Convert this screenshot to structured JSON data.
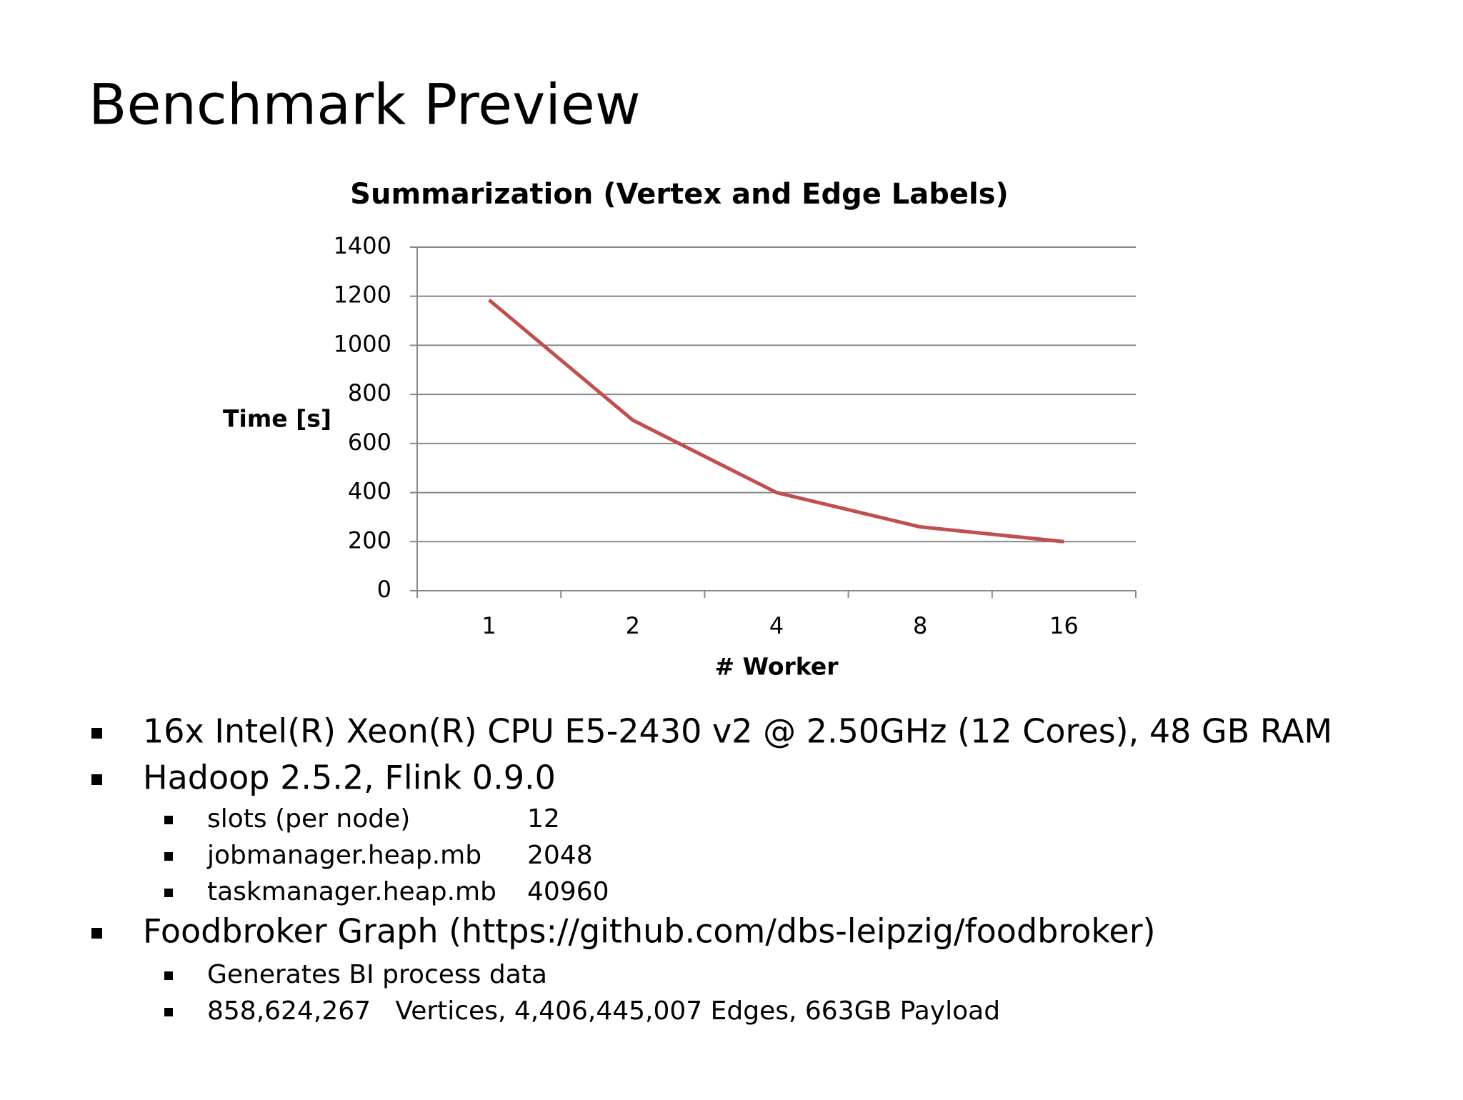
{
  "title": "Benchmark Preview",
  "chart_data": {
    "type": "line",
    "title": "Summarization (Vertex and Edge Labels)",
    "x_label": "# Worker",
    "y_label": "Time [s]",
    "categories": [
      "1",
      "2",
      "4",
      "8",
      "16"
    ],
    "values": [
      1185,
      695,
      400,
      260,
      200
    ],
    "color": "#c0504d",
    "ylim": [
      0,
      1400
    ],
    "yticks": [
      0,
      200,
      400,
      600,
      800,
      1000,
      1200,
      1400
    ],
    "grid": true
  },
  "bullets": [
    {
      "text": "16x Intel(R) Xeon(R) CPU E5-2430 v2 @ 2.50GHz (12 Cores), 48 GB RAM",
      "sub": []
    },
    {
      "text": "Hadoop 2.5.2, Flink 0.9.0",
      "sub": [
        {
          "label": "slots (per node)",
          "value": 12
        },
        {
          "label": "jobmanager.heap.mb",
          "value": 2048
        },
        {
          "label": "taskmanager.heap.mb",
          "value": 40960
        }
      ]
    },
    {
      "text": "Foodbroker Graph (https://github.com/dbs-leipzig/foodbroker)",
      "sub": [
        {
          "label": "Generates BI process data"
        },
        {
          "label": "858,624,267   Vertices, 4,406,445,007 Edges, 663GB Payload"
        }
      ]
    }
  ]
}
